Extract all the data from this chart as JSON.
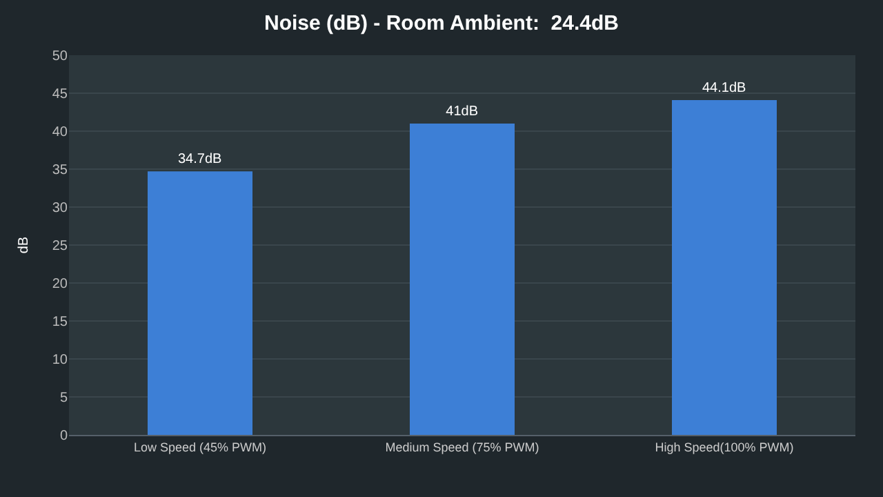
{
  "chart_data": {
    "type": "bar",
    "title": "Noise (dB) - Room Ambient:  24.4dB",
    "ylabel": "dB",
    "categories": [
      "Low Speed (45% PWM)",
      "Medium Speed (75% PWM)",
      "High Speed(100% PWM)"
    ],
    "values": [
      34.7,
      41,
      44.1
    ],
    "color": "#3d7fd6",
    "value_labels": [
      "34.7dB",
      "41dB",
      "44.1dB"
    ],
    "ylim": [
      0,
      50
    ],
    "yticks": [
      0,
      5,
      10,
      15,
      20,
      25,
      30,
      35,
      40,
      45,
      50
    ],
    "grid": "y",
    "legend": false
  }
}
